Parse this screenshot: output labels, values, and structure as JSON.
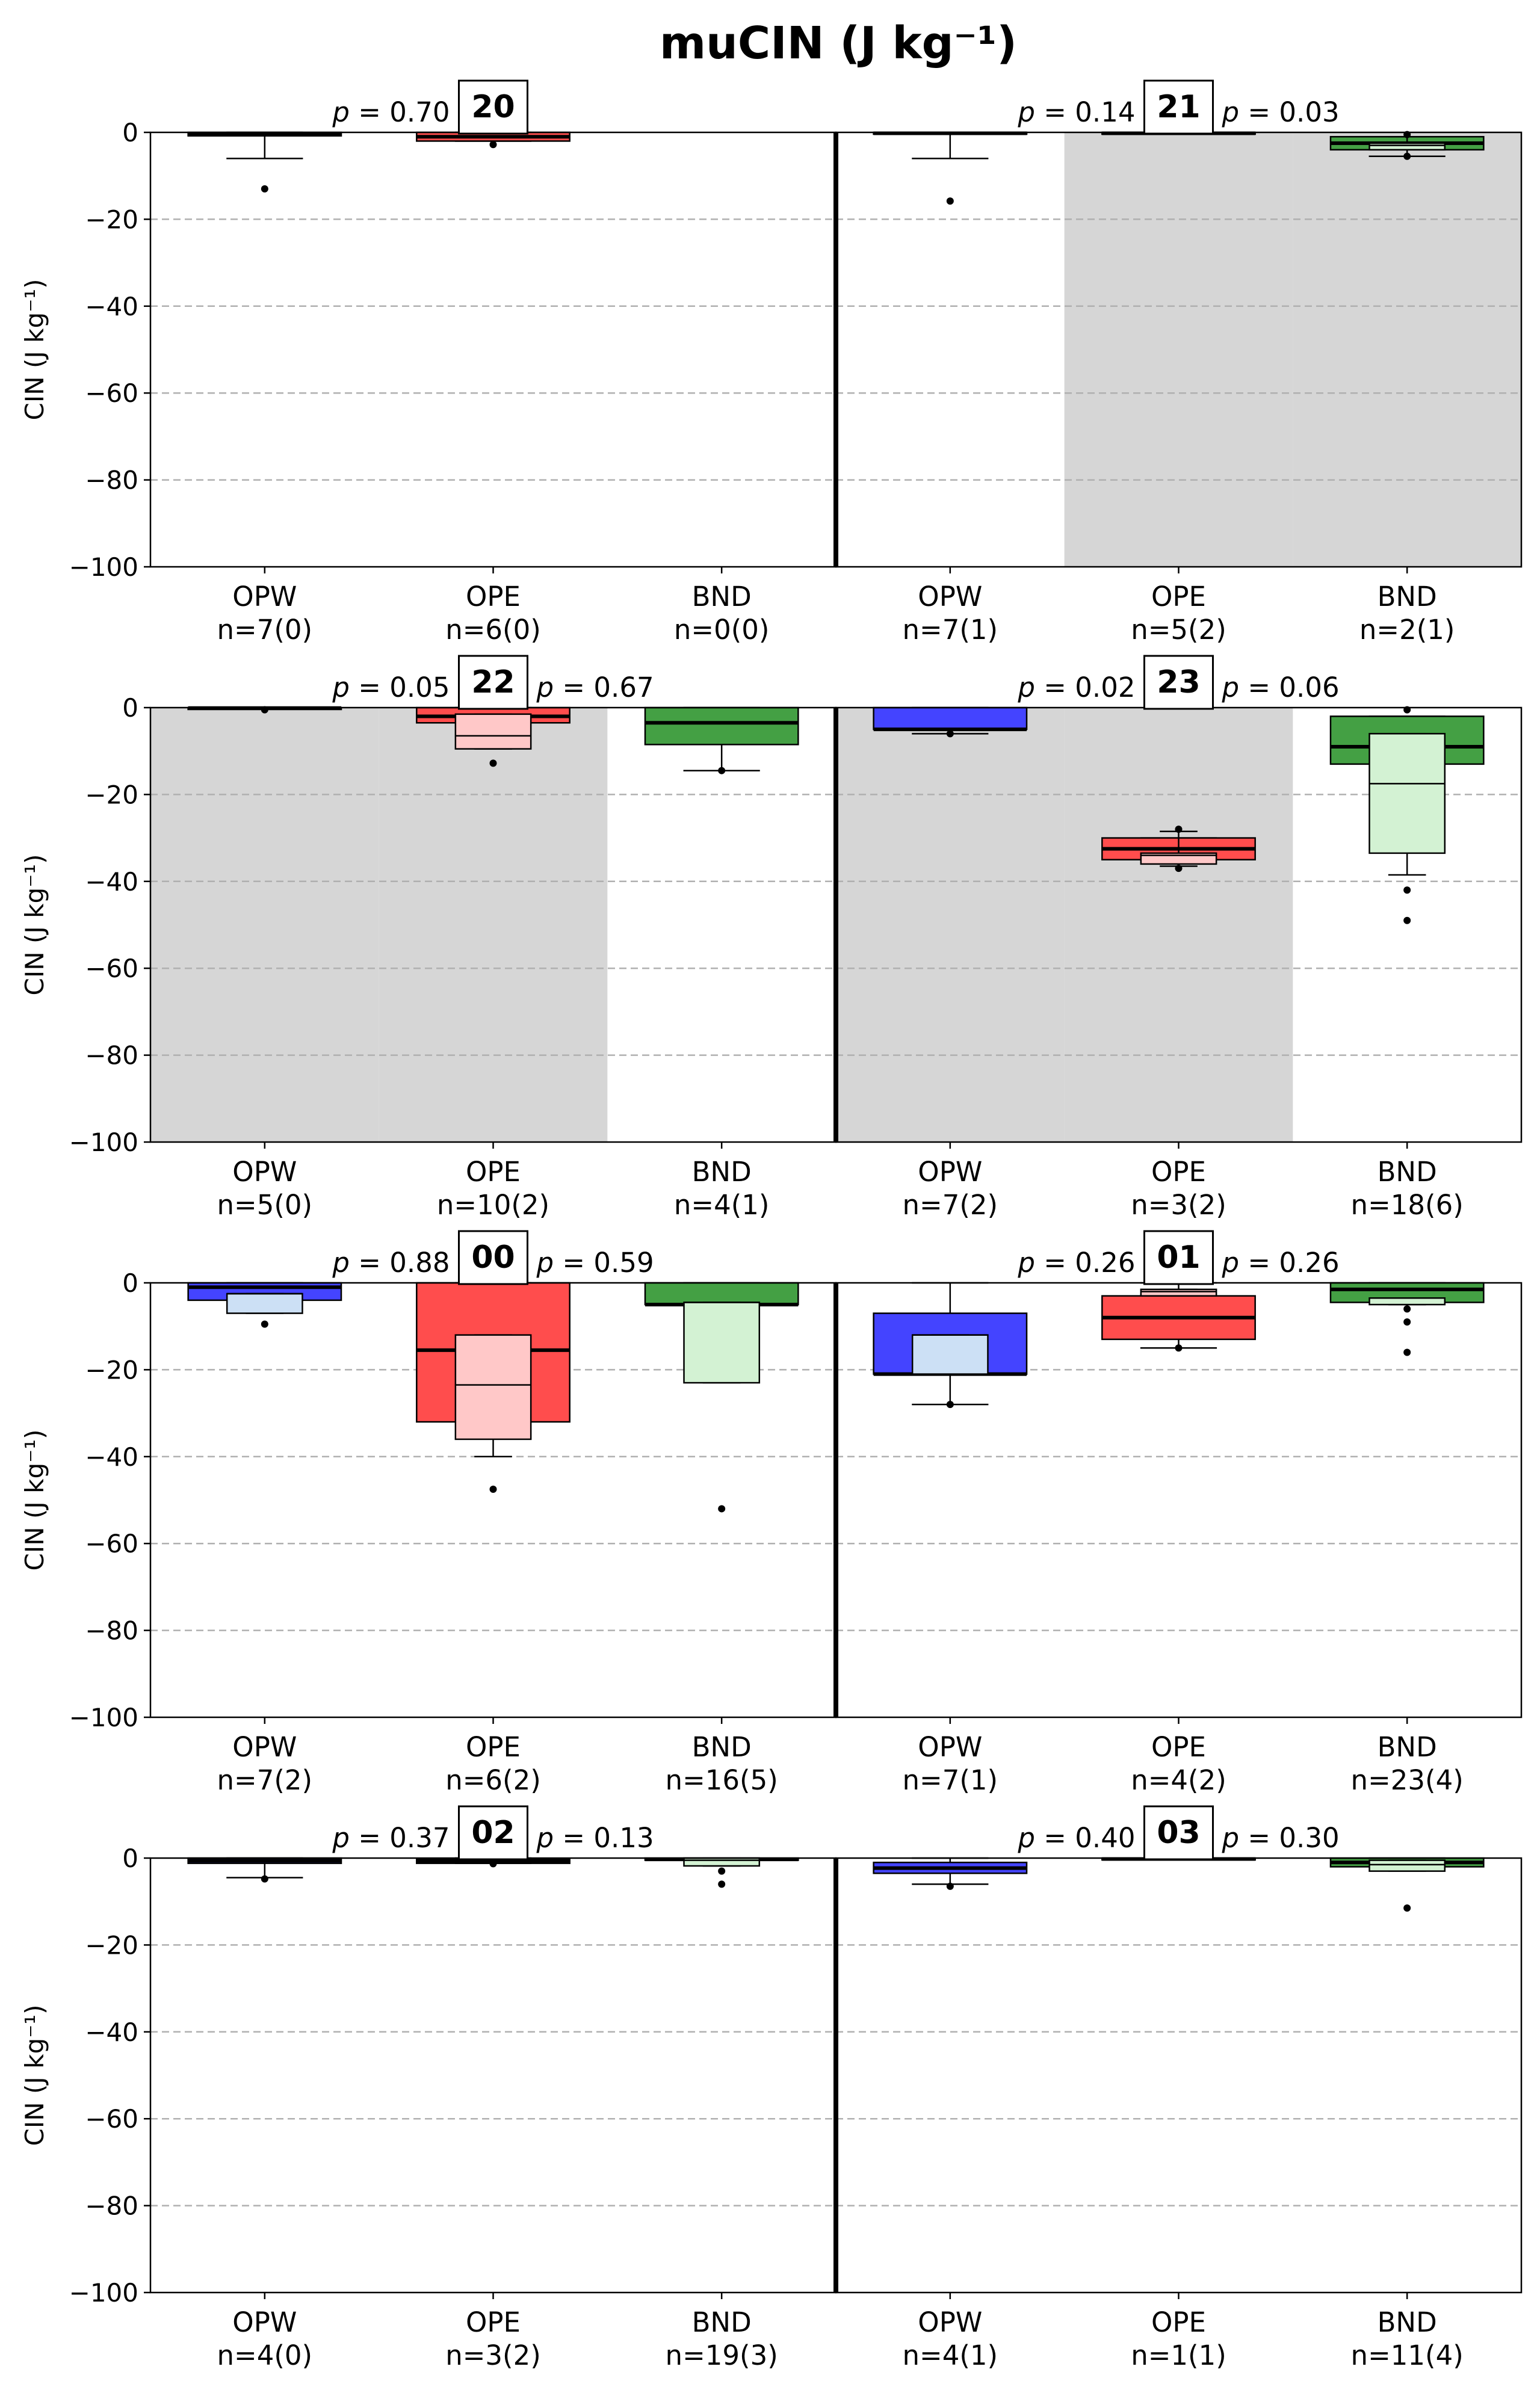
{
  "title": "muCIN (J kg⁻¹)",
  "ylabel": "CIN (J kg⁻¹)",
  "yticks": [
    "0",
    "−20",
    "−40",
    "−60",
    "−80",
    "−100"
  ],
  "categories": [
    "OPW",
    "OPE",
    "BND"
  ],
  "colors": {
    "OPW": "#4444ff",
    "OPE": "#ff4d4d",
    "BND": "#44a044",
    "OPW_light": "#cce0f5",
    "OPE_light": "#ffc8c8",
    "BND_light": "#d3f2d3",
    "shade": "#d6d6d6",
    "grid": "#b0b0b0"
  },
  "chart_data": {
    "type": "boxplot",
    "ylim": [
      -100,
      0
    ],
    "grid": "horizontal dashed",
    "panels": [
      {
        "label": "20",
        "p_left": "0.70",
        "p_right": "",
        "shaded": [],
        "n": [
          "n=7(0)",
          "n=6(0)",
          "n=0(0)"
        ],
        "boxes": {
          "OPW": {
            "q1": -0.8,
            "median": -0.3,
            "q3": 0,
            "whislo": -6,
            "whishi": 0,
            "fliers": [
              -13
            ]
          },
          "OPE": {
            "q1": -2,
            "median": -1,
            "q3": 0,
            "whislo": -2,
            "whishi": 0,
            "fliers": [
              -2.8
            ]
          },
          "BND": null
        },
        "inner": {
          "OPW": null,
          "OPE": null,
          "BND": null
        }
      },
      {
        "label": "21",
        "p_left": "0.14",
        "p_right": "0.03",
        "shaded": [
          "OPE",
          "BND"
        ],
        "n": [
          "n=7(1)",
          "n=5(2)",
          "n=2(1)"
        ],
        "boxes": {
          "OPW": {
            "q1": -0.3,
            "median": -0.2,
            "q3": 0,
            "whislo": -6,
            "whishi": 0,
            "fliers": [
              -15.8
            ]
          },
          "OPE": {
            "q1": -0.3,
            "median": -0.2,
            "q3": 0,
            "whislo": -0.3,
            "whishi": 0,
            "fliers": []
          },
          "BND": {
            "q1": -4,
            "median": -2.5,
            "q3": -1,
            "whislo": -5.5,
            "whishi": -1,
            "fliers": [
              -5.5,
              -0.5
            ]
          }
        },
        "inner": {
          "OPW": null,
          "OPE": null,
          "BND": {
            "q1": -4,
            "median": -3,
            "q3": -2.5,
            "whislo": -5.5,
            "whishi": -1
          }
        }
      },
      {
        "label": "22",
        "p_left": "0.05",
        "p_right": "0.67",
        "shaded": [
          "OPW",
          "OPE"
        ],
        "n": [
          "n=5(0)",
          "n=10(2)",
          "n=4(1)"
        ],
        "boxes": {
          "OPW": {
            "q1": -0.2,
            "median": -0.1,
            "q3": 0,
            "whislo": -0.3,
            "whishi": 0,
            "fliers": [
              -0.5
            ]
          },
          "OPE": {
            "q1": -3.5,
            "median": -2,
            "q3": 0,
            "whislo": -3.5,
            "whishi": 0,
            "fliers": []
          },
          "BND": {
            "q1": -8.5,
            "median": -3.5,
            "q3": 0,
            "whislo": -14.5,
            "whishi": 0,
            "fliers": [
              -14.5
            ]
          }
        },
        "inner": {
          "OPW": null,
          "OPE": {
            "q1": -9.5,
            "median": -6.5,
            "q3": -1.5,
            "whislo": -9.5,
            "whishi": -1.5,
            "fliers": [
              -12.8
            ]
          },
          "BND": null
        }
      },
      {
        "label": "23",
        "p_left": "0.02",
        "p_right": "0.06",
        "shaded": [
          "OPW",
          "OPE"
        ],
        "n": [
          "n=7(2)",
          "n=3(2)",
          "n=18(6)"
        ],
        "boxes": {
          "OPW": {
            "q1": -5,
            "median": -5,
            "q3": 0,
            "whislo": -6,
            "whishi": 0,
            "fliers": [
              -6
            ]
          },
          "OPE": {
            "q1": -35,
            "median": -32.5,
            "q3": -30,
            "whislo": -35,
            "whishi": -30,
            "fliers": []
          },
          "BND": {
            "q1": -13,
            "median": -9,
            "q3": -2,
            "whislo": -13,
            "whishi": -2,
            "fliers": [
              -0.5
            ]
          }
        },
        "inner": {
          "OPW": null,
          "OPE": {
            "q1": -36,
            "median": -34,
            "q3": -33.5,
            "whislo": -36.5,
            "whishi": -28.5,
            "fliers": [
              -37,
              -28
            ]
          },
          "BND": {
            "q1": -33.5,
            "median": -17.5,
            "q3": -6,
            "whislo": -38.5,
            "whishi": -6,
            "fliers": [
              -42,
              -49
            ]
          }
        }
      },
      {
        "label": "00",
        "p_left": "0.88",
        "p_right": "0.59",
        "shaded": [],
        "n": [
          "n=7(2)",
          "n=6(2)",
          "n=16(5)"
        ],
        "boxes": {
          "OPW": {
            "q1": -4,
            "median": -1,
            "q3": 0,
            "whislo": -4,
            "whishi": 0,
            "fliers": []
          },
          "OPE": {
            "q1": -32,
            "median": -15.5,
            "q3": 0,
            "whislo": -32,
            "whishi": 0,
            "fliers": []
          },
          "BND": {
            "q1": -5,
            "median": -5,
            "q3": 0,
            "whislo": -5,
            "whishi": 0,
            "fliers": []
          }
        },
        "inner": {
          "OPW": {
            "q1": -7,
            "median": -2.5,
            "q3": -2.5,
            "whislo": -7,
            "whishi": -2.5,
            "fliers": [
              -9.5
            ]
          },
          "OPE": {
            "q1": -36,
            "median": -23.5,
            "q3": -12,
            "whislo": -40,
            "whishi": -12,
            "fliers": [
              -47.5
            ]
          },
          "BND": {
            "q1": -23,
            "median": -4.5,
            "q3": -4.5,
            "whislo": -23,
            "whishi": -4.5,
            "fliers": [
              -52
            ]
          }
        }
      },
      {
        "label": "01",
        "p_left": "0.26",
        "p_right": "0.26",
        "shaded": [],
        "n": [
          "n=7(1)",
          "n=4(2)",
          "n=23(4)"
        ],
        "boxes": {
          "OPW": {
            "q1": -21,
            "median": -21,
            "q3": -7,
            "whislo": -28,
            "whishi": 0,
            "fliers": [
              -28
            ]
          },
          "OPE": {
            "q1": -13,
            "median": -8,
            "q3": -3,
            "whislo": -15,
            "whishi": 0,
            "fliers": [
              -15
            ]
          },
          "BND": {
            "q1": -4.5,
            "median": -1.5,
            "q3": 0,
            "whislo": -4.5,
            "whishi": 0,
            "fliers": [
              -6,
              -9,
              -16
            ]
          }
        },
        "inner": {
          "OPW": {
            "q1": -21,
            "median": -12,
            "q3": -12,
            "whislo": -21,
            "whishi": -12,
            "fliers": []
          },
          "OPE": {
            "q1": -3,
            "median": -2,
            "q3": -1.5,
            "whislo": -3,
            "whishi": -1.5,
            "fliers": []
          },
          "BND": {
            "q1": -5,
            "median": -3.5,
            "q3": -3.5,
            "whislo": -5,
            "whishi": -3.5,
            "fliers": []
          }
        }
      },
      {
        "label": "02",
        "p_left": "0.37",
        "p_right": "0.13",
        "shaded": [],
        "n": [
          "n=4(0)",
          "n=3(2)",
          "n=19(3)"
        ],
        "boxes": {
          "OPW": {
            "q1": -1.2,
            "median": -0.6,
            "q3": 0,
            "whislo": -4.5,
            "whishi": 0,
            "fliers": [
              -4.8
            ]
          },
          "OPE": {
            "q1": -1.2,
            "median": -0.8,
            "q3": -0.3,
            "whislo": -1.2,
            "whishi": 0,
            "fliers": [
              -1.3
            ]
          },
          "BND": {
            "q1": -0.5,
            "median": -0.3,
            "q3": 0,
            "whislo": -0.5,
            "whishi": 0,
            "fliers": []
          }
        },
        "inner": {
          "OPW": null,
          "OPE": null,
          "BND": {
            "q1": -1.8,
            "median": -0.5,
            "q3": 0,
            "whislo": -1.8,
            "whishi": 0,
            "fliers": [
              -3,
              -6
            ]
          }
        }
      },
      {
        "label": "03",
        "p_left": "0.40",
        "p_right": "0.30",
        "shaded": [],
        "n": [
          "n=4(1)",
          "n=1(1)",
          "n=11(4)"
        ],
        "boxes": {
          "OPW": {
            "q1": -3.5,
            "median": -2.3,
            "q3": -1,
            "whislo": -6,
            "whishi": 0,
            "fliers": [
              -6.5
            ]
          },
          "OPE": {
            "q1": -0.3,
            "median": -0.2,
            "q3": 0,
            "whislo": -0.3,
            "whishi": 0,
            "fliers": []
          },
          "BND": {
            "q1": -2,
            "median": -1,
            "q3": 0,
            "whislo": -2,
            "whishi": 0,
            "fliers": [
              -11.5
            ]
          }
        },
        "inner": {
          "OPW": null,
          "OPE": null,
          "BND": {
            "q1": -3,
            "median": -1.5,
            "q3": -0.5,
            "whislo": -3,
            "whishi": -0.5,
            "fliers": []
          }
        }
      }
    ]
  }
}
